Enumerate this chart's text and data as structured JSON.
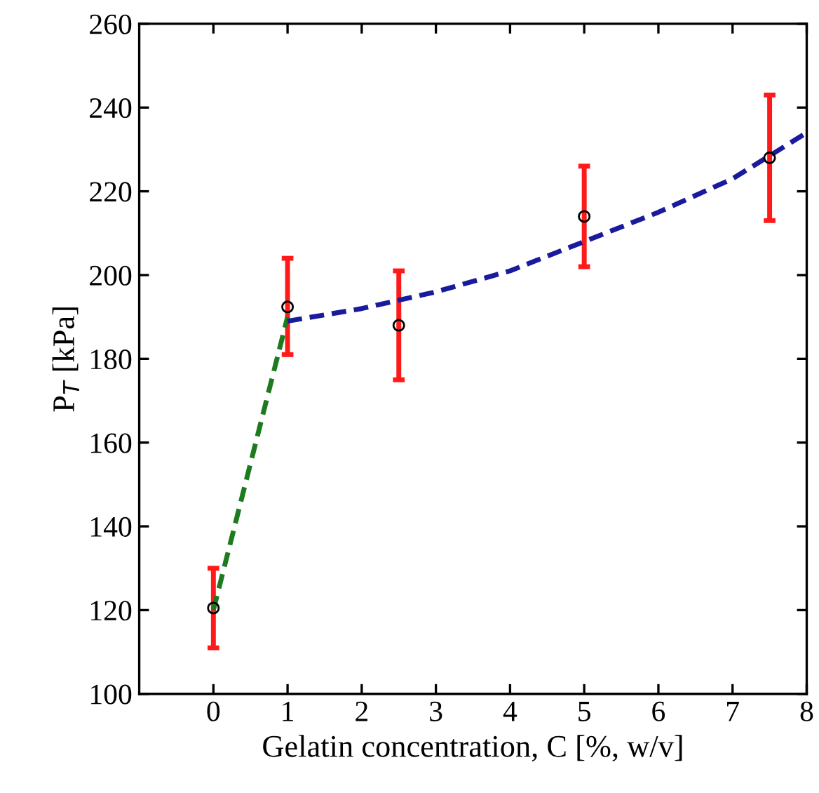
{
  "chart_data": {
    "type": "scatter",
    "xlabel": "Gelatin concentration, C [%, w/v]",
    "ylabel": "P$_{T}$ [kPa]",
    "xlim": [
      -1,
      8
    ],
    "xticks": [
      0,
      1,
      2,
      3,
      4,
      5,
      6,
      7,
      8
    ],
    "ylim": [
      100,
      260
    ],
    "yticks": [
      100,
      120,
      140,
      160,
      180,
      200,
      220,
      240,
      260
    ],
    "grid": false,
    "legend": false,
    "series": [
      {
        "color": "#000000",
        "marker": "circle",
        "x": [
          0,
          1,
          2.5,
          5,
          7.5
        ],
        "values": [
          120.5,
          192.4,
          188,
          214,
          228
        ],
        "errors": [
          [
            111,
            130
          ],
          [
            181,
            204
          ],
          [
            175,
            201
          ],
          [
            202,
            226
          ],
          [
            213,
            243
          ]
        ]
      },
      {
        "type": "line",
        "color": "#1e7a1e",
        "line_style": "dashed",
        "marker": "none",
        "x": [
          0,
          1
        ],
        "values": [
          120,
          190
        ]
      },
      {
        "type": "line",
        "color": "#1a1a9c",
        "line_style": "dashed",
        "marker": "none",
        "x": [
          1,
          2,
          3,
          4,
          5,
          6,
          7,
          8
        ],
        "values": [
          189,
          192,
          196,
          201,
          208,
          215,
          223,
          234
        ]
      }
    ]
  }
}
